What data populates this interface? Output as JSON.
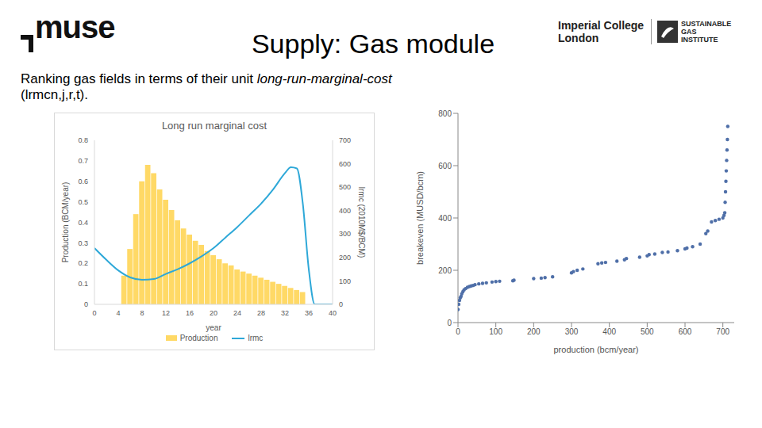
{
  "header": {
    "logo": "muse",
    "title": "Supply: Gas module",
    "logos": [
      [
        "Imperial College",
        "London"
      ],
      [
        "SUSTAINABLE",
        "GAS",
        "INSTITUTE"
      ]
    ]
  },
  "text": {
    "before": "Ranking gas fields in terms of their unit ",
    "italic": "long-run-marginal-cost",
    "after": " (lrmcn,j,r,t)."
  },
  "chart_data": [
    {
      "type": "combo",
      "title": "Long run marginal cost",
      "x_label": "year",
      "y_label": "Production (BCM/year)",
      "y2_label": "lrmc (2010M$/BCM)",
      "xlim": [
        0,
        40
      ],
      "xticks": [
        0,
        4,
        8,
        12,
        16,
        20,
        24,
        28,
        32,
        36,
        40
      ],
      "ylim": [
        0,
        0.8
      ],
      "yticks": [
        0,
        0.1,
        0.2,
        0.3,
        0.4,
        0.5,
        0.6,
        0.7,
        0.8
      ],
      "y2lim": [
        0,
        700
      ],
      "y2ticks": [
        0,
        100,
        200,
        300,
        400,
        500,
        600,
        700
      ],
      "grid": false,
      "legend": "bottom",
      "series": [
        {
          "name": "Production",
          "type": "bar",
          "color": "#ffd966",
          "x": [
            5,
            6,
            7,
            8,
            9,
            10,
            11,
            12,
            13,
            14,
            15,
            16,
            17,
            18,
            19,
            20,
            21,
            22,
            23,
            24,
            25,
            26,
            27,
            28,
            29,
            30,
            31,
            32,
            33,
            34,
            35
          ],
          "values": [
            0.14,
            0.27,
            0.44,
            0.6,
            0.68,
            0.64,
            0.56,
            0.51,
            0.46,
            0.41,
            0.37,
            0.34,
            0.31,
            0.29,
            0.26,
            0.24,
            0.22,
            0.2,
            0.19,
            0.17,
            0.16,
            0.15,
            0.14,
            0.13,
            0.12,
            0.11,
            0.1,
            0.09,
            0.08,
            0.07,
            0.06
          ]
        },
        {
          "name": "lrmc",
          "type": "line",
          "axis": "y2",
          "color": "#2ea8d8",
          "x": [
            0,
            2,
            4,
            6,
            8,
            10,
            12,
            14,
            16,
            18,
            20,
            22,
            24,
            26,
            28,
            30,
            32,
            33,
            34,
            35,
            36,
            37,
            40
          ],
          "values": [
            240,
            190,
            145,
            115,
            105,
            108,
            130,
            150,
            175,
            205,
            240,
            285,
            330,
            380,
            430,
            490,
            560,
            585,
            580,
            430,
            150,
            0,
            0
          ]
        }
      ]
    },
    {
      "type": "scatter",
      "x_label": "production (bcm/year)",
      "y_label": "breakeven (MUSD/bcm)",
      "xlim": [
        0,
        730
      ],
      "xticks": [
        0,
        100,
        200,
        300,
        400,
        500,
        600,
        700
      ],
      "ylim": [
        0,
        800
      ],
      "yticks": [
        0,
        200,
        400,
        600,
        800
      ],
      "grid": false,
      "color": "#4f6fa8",
      "marker": "circle",
      "x": [
        0,
        2,
        4,
        6,
        8,
        10,
        13,
        16,
        20,
        25,
        30,
        35,
        40,
        45,
        55,
        65,
        75,
        90,
        100,
        110,
        145,
        148,
        200,
        220,
        230,
        250,
        300,
        305,
        315,
        330,
        370,
        380,
        390,
        420,
        440,
        445,
        480,
        500,
        505,
        520,
        540,
        555,
        580,
        600,
        605,
        620,
        640,
        655,
        660,
        670,
        680,
        690,
        700,
        703,
        705,
        706,
        707,
        708,
        709,
        710,
        711,
        712,
        713
      ],
      "values": [
        50,
        70,
        85,
        95,
        100,
        110,
        118,
        125,
        130,
        135,
        138,
        140,
        142,
        145,
        148,
        150,
        152,
        155,
        157,
        158,
        160,
        162,
        168,
        170,
        172,
        175,
        190,
        195,
        200,
        205,
        225,
        228,
        230,
        235,
        240,
        245,
        250,
        255,
        260,
        262,
        268,
        270,
        275,
        282,
        285,
        290,
        300,
        340,
        350,
        385,
        390,
        395,
        400,
        410,
        420,
        460,
        500,
        540,
        580,
        620,
        660,
        700,
        750
      ]
    }
  ]
}
